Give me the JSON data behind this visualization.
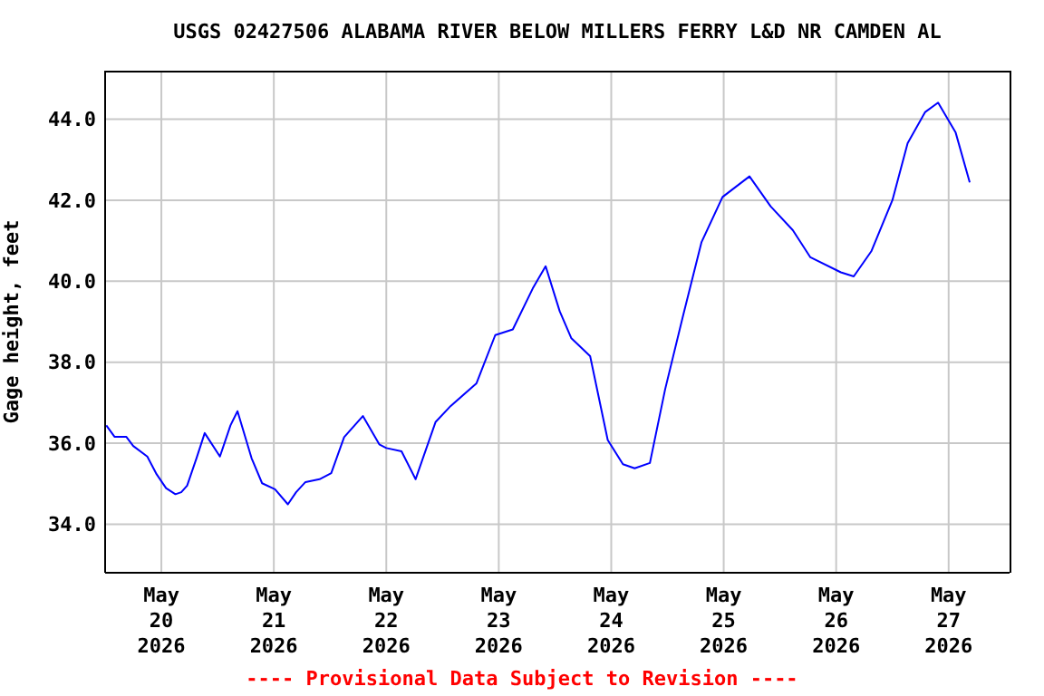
{
  "chart_data": {
    "type": "line",
    "title": "USGS 02427506 ALABAMA RIVER BELOW MILLERS FERRY L&D NR CAMDEN AL",
    "ylabel": "Gage height, feet",
    "annotations": [
      "---- Provisional Data Subject to Revision ----"
    ],
    "x": [
      "2026-05-19T12:15",
      "2026-05-19T14:00",
      "2026-05-19T16:30",
      "2026-05-19T18:00",
      "2026-05-19T21:00",
      "2026-05-19T23:00",
      "2026-05-20T01:00",
      "2026-05-20T03:00",
      "2026-05-20T04:15",
      "2026-05-20T05:30",
      "2026-05-20T07:30",
      "2026-05-20T09:15",
      "2026-05-20T12:30",
      "2026-05-20T14:45",
      "2026-05-20T16:15",
      "2026-05-20T19:15",
      "2026-05-20T21:30",
      "2026-05-21T00:15",
      "2026-05-21T03:00",
      "2026-05-21T04:45",
      "2026-05-21T06:45",
      "2026-05-21T09:45",
      "2026-05-21T12:15",
      "2026-05-21T15:00",
      "2026-05-21T19:00",
      "2026-05-21T22:30",
      "2026-05-22T00:00",
      "2026-05-22T03:15",
      "2026-05-22T06:15",
      "2026-05-22T10:30",
      "2026-05-22T13:45",
      "2026-05-22T19:15",
      "2026-05-22T23:15",
      "2026-05-23T03:00",
      "2026-05-23T07:15",
      "2026-05-23T10:00",
      "2026-05-23T13:00",
      "2026-05-23T15:30",
      "2026-05-23T19:30",
      "2026-05-23T23:15",
      "2026-05-24T02:30",
      "2026-05-24T05:00",
      "2026-05-24T08:15",
      "2026-05-24T11:30",
      "2026-05-24T15:15",
      "2026-05-24T19:15",
      "2026-05-24T23:45",
      "2026-05-25T05:30",
      "2026-05-25T10:00",
      "2026-05-25T14:45",
      "2026-05-25T18:30",
      "2026-05-26T01:00",
      "2026-05-26T03:45",
      "2026-05-26T07:30",
      "2026-05-26T12:00",
      "2026-05-26T15:15",
      "2026-05-26T19:00",
      "2026-05-26T21:45",
      "2026-05-27T01:30",
      "2026-05-27T04:30"
    ],
    "series": [
      {
        "color": "#0000ff",
        "values": [
          36.44,
          36.16,
          36.16,
          35.93,
          35.67,
          35.23,
          34.89,
          34.74,
          34.79,
          34.95,
          35.63,
          36.25,
          35.67,
          36.44,
          36.79,
          35.63,
          35.01,
          34.86,
          34.49,
          34.79,
          35.04,
          35.11,
          35.26,
          36.15,
          36.67,
          35.97,
          35.88,
          35.8,
          35.11,
          36.52,
          36.92,
          37.48,
          38.67,
          38.81,
          39.82,
          40.37,
          39.26,
          38.59,
          38.15,
          36.08,
          35.48,
          35.38,
          35.51,
          37.33,
          39.11,
          40.96,
          42.08,
          42.59,
          41.85,
          41.26,
          40.59,
          40.22,
          40.12,
          40.74,
          42.0,
          43.41,
          44.18,
          44.41,
          43.67,
          42.44
        ]
      }
    ],
    "xlim": [
      "2026-05-19T12:00",
      "2026-05-27T13:00"
    ],
    "xticks": [
      {
        "value": "2026-05-20",
        "label": "May\n20\n2026"
      },
      {
        "value": "2026-05-21",
        "label": "May\n21\n2026"
      },
      {
        "value": "2026-05-22",
        "label": "May\n22\n2026"
      },
      {
        "value": "2026-05-23",
        "label": "May\n23\n2026"
      },
      {
        "value": "2026-05-24",
        "label": "May\n24\n2026"
      },
      {
        "value": "2026-05-25",
        "label": "May\n25\n2026"
      },
      {
        "value": "2026-05-26",
        "label": "May\n26\n2026"
      },
      {
        "value": "2026-05-27",
        "label": "May\n27\n2026"
      }
    ],
    "ylim": [
      32.8,
      45.2
    ],
    "yticks": [
      {
        "value": 34,
        "label": "34.0"
      },
      {
        "value": 36,
        "label": "36.0"
      },
      {
        "value": 38,
        "label": "38.0"
      },
      {
        "value": 40,
        "label": "40.0"
      },
      {
        "value": 42,
        "label": "42.0"
      },
      {
        "value": 44,
        "label": "44.0"
      }
    ],
    "grid": true,
    "marker": "none",
    "line_style": "solid"
  }
}
